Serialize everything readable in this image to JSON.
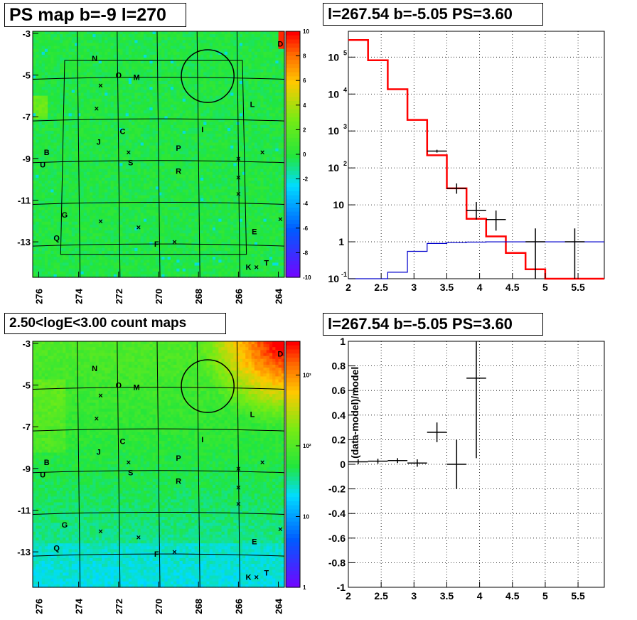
{
  "panels": {
    "top_left_title": "PS map b=-9 l=270",
    "top_right_title": "l=267.54 b=-5.05 PS=3.60",
    "bottom_left_title": "2.50<logE<3.00 count maps",
    "bottom_right_title": "l=267.54 b=-5.05 PS=3.60"
  },
  "colors": {
    "model_line": "#ff0000",
    "background_line": "#0000cc",
    "data_marker": "#000000",
    "map_base": "#22e022"
  },
  "chart_data": [
    {
      "type": "heatmap",
      "title": "PS map b=-9 l=270",
      "x_ticks": [
        "276",
        "274",
        "272",
        "270",
        "268",
        "266",
        "264"
      ],
      "x_tick_values": [
        276,
        274,
        272,
        270,
        268,
        266,
        264
      ],
      "y_ticks": [
        "-3",
        "-5",
        "-7",
        "-9",
        "-11",
        "-13"
      ],
      "y_tick_values": [
        -3,
        -5,
        -7,
        -9,
        -11,
        -13
      ],
      "xlim": [
        276.3,
        263.7
      ],
      "ylim": [
        -14.7,
        -2.9
      ],
      "colorbar": {
        "scale": "linear",
        "range": [
          -10,
          10
        ],
        "ticks": [
          "10",
          "8",
          "6",
          "4",
          "2",
          "0",
          "-2",
          "-4",
          "-6",
          "-8",
          "-10"
        ],
        "tick_values": [
          10,
          8,
          6,
          4,
          2,
          0,
          -2,
          -4,
          -6,
          -8,
          -10
        ]
      },
      "source_labels": [
        {
          "text": "N",
          "l": 273.2,
          "b": -4.2
        },
        {
          "text": "O",
          "l": 272.0,
          "b": -5.0
        },
        {
          "text": "M",
          "l": 271.1,
          "b": -5.1
        },
        {
          "text": "L",
          "l": 265.3,
          "b": -6.4
        },
        {
          "text": "I",
          "l": 267.8,
          "b": -7.6
        },
        {
          "text": "C",
          "l": 271.8,
          "b": -7.7
        },
        {
          "text": "J",
          "l": 273.0,
          "b": -8.2
        },
        {
          "text": "P",
          "l": 269.0,
          "b": -8.5
        },
        {
          "text": "B",
          "l": 275.6,
          "b": -8.7
        },
        {
          "text": "U",
          "l": 275.8,
          "b": -9.3
        },
        {
          "text": "S",
          "l": 271.4,
          "b": -9.2
        },
        {
          "text": "R",
          "l": 269.0,
          "b": -9.6
        },
        {
          "text": "G",
          "l": 274.7,
          "b": -11.7
        },
        {
          "text": "E",
          "l": 265.2,
          "b": -12.5
        },
        {
          "text": "Q",
          "l": 275.1,
          "b": -12.8
        },
        {
          "text": "F",
          "l": 270.1,
          "b": -13.1
        },
        {
          "text": "K",
          "l": 265.5,
          "b": -14.2
        },
        {
          "text": "T",
          "l": 264.6,
          "b": -14.0
        },
        {
          "text": "D",
          "l": 263.9,
          "b": -3.5
        }
      ],
      "crosses": [
        {
          "l": 272.9,
          "b": -5.5
        },
        {
          "l": 273.1,
          "b": -6.6
        },
        {
          "l": 271.5,
          "b": -8.7
        },
        {
          "l": 266.0,
          "b": -9.0
        },
        {
          "l": 264.8,
          "b": -8.7
        },
        {
          "l": 266.0,
          "b": -9.9
        },
        {
          "l": 266.0,
          "b": -10.7
        },
        {
          "l": 272.9,
          "b": -12.0
        },
        {
          "l": 271.0,
          "b": -12.3
        },
        {
          "l": 269.2,
          "b": -13.0
        },
        {
          "l": 263.9,
          "b": -11.9
        },
        {
          "l": 265.1,
          "b": -14.2
        }
      ],
      "circle": {
        "l": 267.54,
        "b": -5.05,
        "radius_deg": 0.6
      }
    },
    {
      "type": "line",
      "title": "l=267.54 b=-5.05 PS=3.60",
      "xlim": [
        2.0,
        5.9
      ],
      "ylim": [
        0.1,
        500000
      ],
      "yscale": "log",
      "x_ticks": [
        "2",
        "2.5",
        "3",
        "3.5",
        "4",
        "4.5",
        "5",
        "5.5"
      ],
      "x_tick_values": [
        2,
        2.5,
        3,
        3.5,
        4,
        4.5,
        5,
        5.5
      ],
      "y_ticks": [
        {
          "mantissa": "10",
          "exponent": "5",
          "value": 100000
        },
        {
          "mantissa": "10",
          "exponent": "4",
          "value": 10000
        },
        {
          "mantissa": "10",
          "exponent": "3",
          "value": 1000
        },
        {
          "mantissa": "10",
          "exponent": "2",
          "value": 100
        },
        {
          "mantissa": "10",
          "exponent": "",
          "value": 10
        },
        {
          "mantissa": "1",
          "exponent": "",
          "value": 1
        },
        {
          "mantissa": "10",
          "exponent": "-1",
          "value": 0.1
        }
      ],
      "grid": true,
      "series": [
        {
          "style": "step",
          "color": "red",
          "edges": [
            2.0,
            2.3,
            2.6,
            2.9,
            3.2,
            3.5,
            3.8,
            4.1,
            4.4,
            4.7,
            5.0,
            5.3,
            5.6,
            5.9
          ],
          "values": [
            290000,
            82000,
            13500,
            2000,
            220,
            28,
            4.2,
            1.4,
            0.5,
            0.18,
            0.1,
            0.1,
            0.1
          ]
        },
        {
          "style": "step",
          "color": "blue",
          "edges": [
            2.0,
            2.3,
            2.6,
            2.9,
            3.2,
            3.5,
            3.8,
            4.1,
            4.4,
            4.7,
            5.0,
            5.3,
            5.6,
            5.9
          ],
          "values": [
            0.1,
            0.1,
            0.15,
            0.55,
            0.9,
            0.95,
            0.98,
            1.0,
            1.0,
            1.0,
            1.0,
            1.0,
            1.0
          ]
        },
        {
          "style": "errorbars",
          "color": "black",
          "points": [
            {
              "x": 3.35,
              "y": 285,
              "x_err": 0.15,
              "y_lo": 260,
              "y_hi": 310
            },
            {
              "x": 3.65,
              "y": 28,
              "x_err": 0.15,
              "y_lo": 20,
              "y_hi": 38
            },
            {
              "x": 3.95,
              "y": 7,
              "x_err": 0.15,
              "y_lo": 4,
              "y_hi": 12
            },
            {
              "x": 4.25,
              "y": 4,
              "x_err": 0.15,
              "y_lo": 2,
              "y_hi": 7
            },
            {
              "x": 4.85,
              "y": 1,
              "x_err": 0.15,
              "y_lo": 0.1,
              "y_hi": 2.3
            },
            {
              "x": 5.45,
              "y": 1,
              "x_err": 0.15,
              "y_lo": 0.1,
              "y_hi": 2.3
            }
          ]
        }
      ]
    },
    {
      "type": "heatmap",
      "title": "2.50<logE<3.00 count maps",
      "x_ticks": [
        "276",
        "274",
        "272",
        "270",
        "268",
        "266",
        "264"
      ],
      "x_tick_values": [
        276,
        274,
        272,
        270,
        268,
        266,
        264
      ],
      "y_ticks": [
        "-3",
        "-5",
        "-7",
        "-9",
        "-11",
        "-13"
      ],
      "y_tick_values": [
        -3,
        -5,
        -7,
        -9,
        -11,
        -13
      ],
      "xlim": [
        276.3,
        263.7
      ],
      "ylim": [
        -14.7,
        -2.9
      ],
      "colorbar": {
        "scale": "log",
        "range": [
          1,
          3000
        ],
        "ticks": [
          "10³",
          "10²",
          "10",
          "1"
        ],
        "tick_values": [
          1000,
          100,
          10,
          1
        ]
      },
      "circle": {
        "l": 267.54,
        "b": -5.05,
        "radius_deg": 0.6
      }
    },
    {
      "type": "scatter",
      "title": "l=267.54 b=-5.05 PS=3.60",
      "ylabel": "(data-model)/model",
      "xlim": [
        2.0,
        5.9
      ],
      "ylim": [
        -1,
        1
      ],
      "x_ticks": [
        "2",
        "2.5",
        "3",
        "3.5",
        "4",
        "4.5",
        "5",
        "5.5"
      ],
      "x_tick_values": [
        2,
        2.5,
        3,
        3.5,
        4,
        4.5,
        5,
        5.5
      ],
      "y_ticks": [
        "1",
        "0.8",
        "0.6",
        "0.4",
        "0.2",
        "0",
        "-0.2",
        "-0.4",
        "-0.6",
        "-0.8",
        "-1"
      ],
      "y_tick_values": [
        1,
        0.8,
        0.6,
        0.4,
        0.2,
        0,
        -0.2,
        -0.4,
        -0.6,
        -0.8,
        -1
      ],
      "grid": true,
      "points": [
        {
          "x": 2.15,
          "y": 0.02,
          "x_err": 0.15,
          "y_err": 0.02
        },
        {
          "x": 2.45,
          "y": 0.025,
          "x_err": 0.15,
          "y_err": 0.02
        },
        {
          "x": 2.75,
          "y": 0.03,
          "x_err": 0.15,
          "y_err": 0.02
        },
        {
          "x": 3.05,
          "y": 0.01,
          "x_err": 0.15,
          "y_err": 0.03
        },
        {
          "x": 3.35,
          "y": 0.26,
          "x_err": 0.15,
          "y_err": 0.08
        },
        {
          "x": 3.65,
          "y": 0.0,
          "x_err": 0.15,
          "y_err": 0.2
        },
        {
          "x": 3.95,
          "y": 0.7,
          "x_err": 0.15,
          "y_err": 0.65
        }
      ]
    }
  ]
}
